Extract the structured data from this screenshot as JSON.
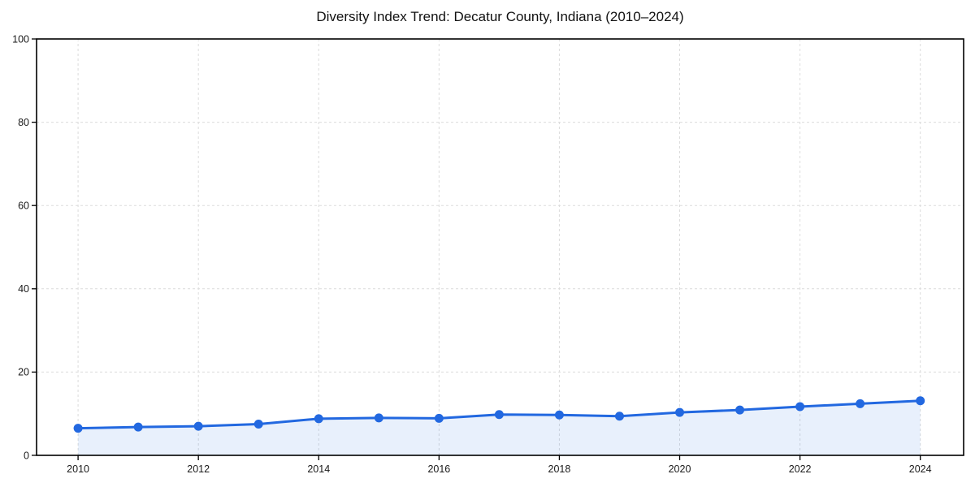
{
  "chart_data": {
    "type": "area",
    "title": "Diversity Index Trend: Decatur County, Indiana (2010–2024)",
    "xlabel": "",
    "ylabel": "",
    "x": [
      2010,
      2011,
      2012,
      2013,
      2014,
      2015,
      2016,
      2017,
      2018,
      2019,
      2020,
      2021,
      2022,
      2023,
      2024
    ],
    "series": [
      {
        "name": "Diversity Index",
        "values": [
          6.5,
          6.8,
          7.0,
          7.5,
          8.8,
          9.0,
          8.9,
          9.8,
          9.7,
          9.4,
          10.3,
          10.9,
          11.7,
          12.4,
          13.1
        ]
      }
    ],
    "xticks": [
      2010,
      2012,
      2014,
      2016,
      2018,
      2020,
      2022,
      2024
    ],
    "yticks": [
      0,
      20,
      40,
      60,
      80,
      100
    ],
    "xlim": [
      2009.31,
      2024.72
    ],
    "ylim": [
      0,
      100
    ],
    "grid": true,
    "grid_style": "dashed",
    "legend": "none",
    "marker": "circle",
    "colors": {
      "line": "#2268e0",
      "marker": "#2268e0",
      "area": "#2268e0",
      "grid": "#dcdcdc",
      "spine": "#000000",
      "tick_text": "#1a1a1a",
      "title_text": "#111111",
      "background": "#ffffff"
    }
  }
}
